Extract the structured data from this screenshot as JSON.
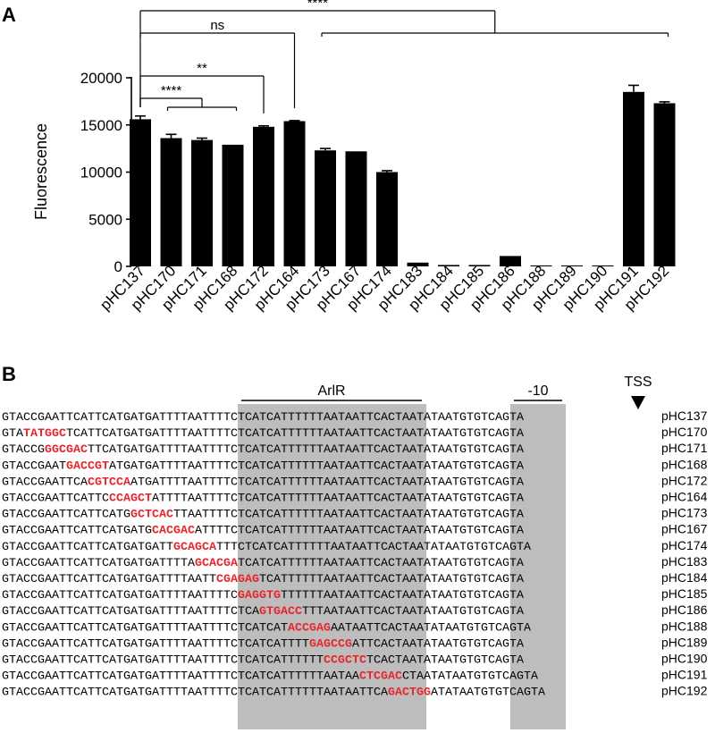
{
  "panel_a": {
    "letter": "A",
    "chart_data": {
      "type": "bar",
      "title": "",
      "xlabel": "",
      "ylabel": "Fluorescence",
      "ylim": [
        0,
        20000
      ],
      "yticks": [
        0,
        5000,
        10000,
        15000,
        20000
      ],
      "grid": false,
      "categories": [
        "pHC137",
        "pHC170",
        "pHC171",
        "pHC168",
        "pHC172",
        "pHC164",
        "pHC173",
        "pHC167",
        "pHC174",
        "pHC183",
        "pHC184",
        "pHC185",
        "pHC186",
        "pHC188",
        "pHC189",
        "pHC190",
        "pHC191",
        "pHC192"
      ],
      "values": [
        15600,
        13600,
        13400,
        12900,
        14800,
        15400,
        12300,
        12200,
        10000,
        400,
        150,
        150,
        1100,
        100,
        100,
        100,
        18500,
        17300
      ],
      "errors": [
        350,
        400,
        200,
        0,
        100,
        60,
        200,
        0,
        150,
        0,
        0,
        0,
        0,
        0,
        0,
        0,
        700,
        150
      ],
      "bar_color": "#000000",
      "significance": [
        {
          "label": "****",
          "from": [
            "pHC137"
          ],
          "to": [
            "pHC173",
            "pHC167",
            "pHC174",
            "pHC183",
            "pHC184",
            "pHC185",
            "pHC186",
            "pHC188",
            "pHC189",
            "pHC190",
            "pHC191",
            "pHC192"
          ]
        },
        {
          "label": "ns",
          "from": [
            "pHC137"
          ],
          "to": [
            "pHC164"
          ]
        },
        {
          "label": "**",
          "from": [
            "pHC137"
          ],
          "to": [
            "pHC172"
          ]
        },
        {
          "label": "****",
          "from": [
            "pHC137"
          ],
          "to": [
            "pHC170",
            "pHC171",
            "pHC168"
          ]
        }
      ]
    }
  },
  "panel_b": {
    "letter": "B",
    "features": {
      "arlr_label": "ArlR",
      "minus10_label": "-10",
      "tss_label": "TSS"
    },
    "mutation_color": "#e8252b",
    "highlight_color": "#bdbdbd",
    "sequences": [
      {
        "name": "pHC137",
        "parts": [
          {
            "t": "GTACCGAATTCATTCATGATGATTTTAATTTTCTCATCATTTTTTAATAATTCACTAATATAATGTGTCAGTA"
          }
        ]
      },
      {
        "name": "pHC170",
        "parts": [
          {
            "t": "GTA"
          },
          {
            "t": "TATGGC",
            "m": true
          },
          {
            "t": "TCATTCATGATGATTTTAATTTTCTCATCATTTTTTAATAATTCACTAATATAATGTGTCAGTA"
          }
        ]
      },
      {
        "name": "pHC171",
        "parts": [
          {
            "t": "GTACCG"
          },
          {
            "t": "GGCGAC",
            "m": true
          },
          {
            "t": "TTCATGATGATTTTAATTTTCTCATCATTTTTTAATAATTCACTAATATAATGTGTCAGTA"
          }
        ]
      },
      {
        "name": "pHC168",
        "parts": [
          {
            "t": "GTACCGAAT"
          },
          {
            "t": "GACCGT",
            "m": true
          },
          {
            "t": "ATGATGATTTTAATTTTCTCATCATTTTTTAATAATTCACTAATATAATGTGTCAGTA"
          }
        ]
      },
      {
        "name": "pHC172",
        "parts": [
          {
            "t": "GTACCGAATTCA"
          },
          {
            "t": "CGTCCA",
            "m": true
          },
          {
            "t": "ATGATTTTAATTTTCTCATCATTTTTTAATAATTCACTAATATAATGTGTCAGTA"
          }
        ]
      },
      {
        "name": "pHC164",
        "parts": [
          {
            "t": "GTACCGAATTCATTC"
          },
          {
            "t": "CCAGCT",
            "m": true
          },
          {
            "t": "ATTTTAATTTTCTCATCATTTTTTAATAATTCACTAATATAATGTGTCAGTA"
          }
        ]
      },
      {
        "name": "pHC173",
        "parts": [
          {
            "t": "GTACCGAATTCATTCATG"
          },
          {
            "t": "GCTCAC",
            "m": true
          },
          {
            "t": "TTAATTTTCTCATCATTTTTTAATAATTCACTAATATAATGTGTCAGTA"
          }
        ]
      },
      {
        "name": "pHC167",
        "parts": [
          {
            "t": "GTACCGAATTCATTCATGATG"
          },
          {
            "t": "CACGAC",
            "m": true
          },
          {
            "t": "ATTTTCTCATCATTTTTTAATAATTCACTAATATAATGTGTCAGTA"
          }
        ]
      },
      {
        "name": "pHC174",
        "parts": [
          {
            "t": "GTACCGAATTCATTCATGATGATT"
          },
          {
            "t": "GCAGCA",
            "m": true
          },
          {
            "t": "TTTCTCATCATTTTTTAATAATTCACTAATATAATGTGTCAGTA"
          }
        ]
      },
      {
        "name": "pHC183",
        "parts": [
          {
            "t": "GTACCGAATTCATTCATGATGATTTTA"
          },
          {
            "t": "GCACGA",
            "m": true
          },
          {
            "t": "TCATCATTTTTTAATAATTCACTAATATAATGTGTCAGTA"
          }
        ]
      },
      {
        "name": "pHC184",
        "parts": [
          {
            "t": "GTACCGAATTCATTCATGATGATTTTAATT"
          },
          {
            "t": "CGAGAG",
            "m": true
          },
          {
            "t": "TCATTTTTTAATAATTCACTAATATAATGTGTCAGTA"
          }
        ]
      },
      {
        "name": "pHC185",
        "parts": [
          {
            "t": "GTACCGAATTCATTCATGATGATTTTAATTTTC"
          },
          {
            "t": "GAGGTG",
            "m": true
          },
          {
            "t": "TTTTTTAATAATTCACTAATATAATGTGTCAGTA"
          }
        ]
      },
      {
        "name": "pHC186",
        "parts": [
          {
            "t": "GTACCGAATTCATTCATGATGATTTTAATTTTCTCA"
          },
          {
            "t": "GTGACC",
            "m": true
          },
          {
            "t": "TTTAATAATTCACTAATATAATGTGTCAGTA"
          }
        ]
      },
      {
        "name": "pHC188",
        "parts": [
          {
            "t": "GTACCGAATTCATTCATGATGATTTTAATTTTCTCATCAT"
          },
          {
            "t": "ACCGAG",
            "m": true
          },
          {
            "t": "AATAATTCACTAATATAATGTGTCAGTA"
          }
        ]
      },
      {
        "name": "pHC189",
        "parts": [
          {
            "t": "GTACCGAATTCATTCATGATGATTTTAATTTTCTCATCATTTT"
          },
          {
            "t": "GAGCCG",
            "m": true
          },
          {
            "t": "ATTCACTAATATAATGTGTCAGTA"
          }
        ]
      },
      {
        "name": "pHC190",
        "parts": [
          {
            "t": "GTACCGAATTCATTCATGATGATTTTAATTTTCTCATCATTTTTT"
          },
          {
            "t": "CCGCTC",
            "m": true
          },
          {
            "t": "TCACTAATATAATGTGTCAGTA"
          }
        ]
      },
      {
        "name": "pHC191",
        "parts": [
          {
            "t": "GTACCGAATTCATTCATGATGATTTTAATTTTCTCATCATTTTTTAATAA"
          },
          {
            "t": "CTCGAC",
            "m": true
          },
          {
            "t": "CTAATATAATGTGTCAGTA"
          }
        ]
      },
      {
        "name": "pHC192",
        "parts": [
          {
            "t": "GTACCGAATTCATTCATGATGATTTTAATTTTCTCATCATTTTTTAATAATTCA"
          },
          {
            "t": "GACTGG",
            "m": true
          },
          {
            "t": "ATATAATGTGTCAGTA"
          }
        ]
      }
    ]
  }
}
